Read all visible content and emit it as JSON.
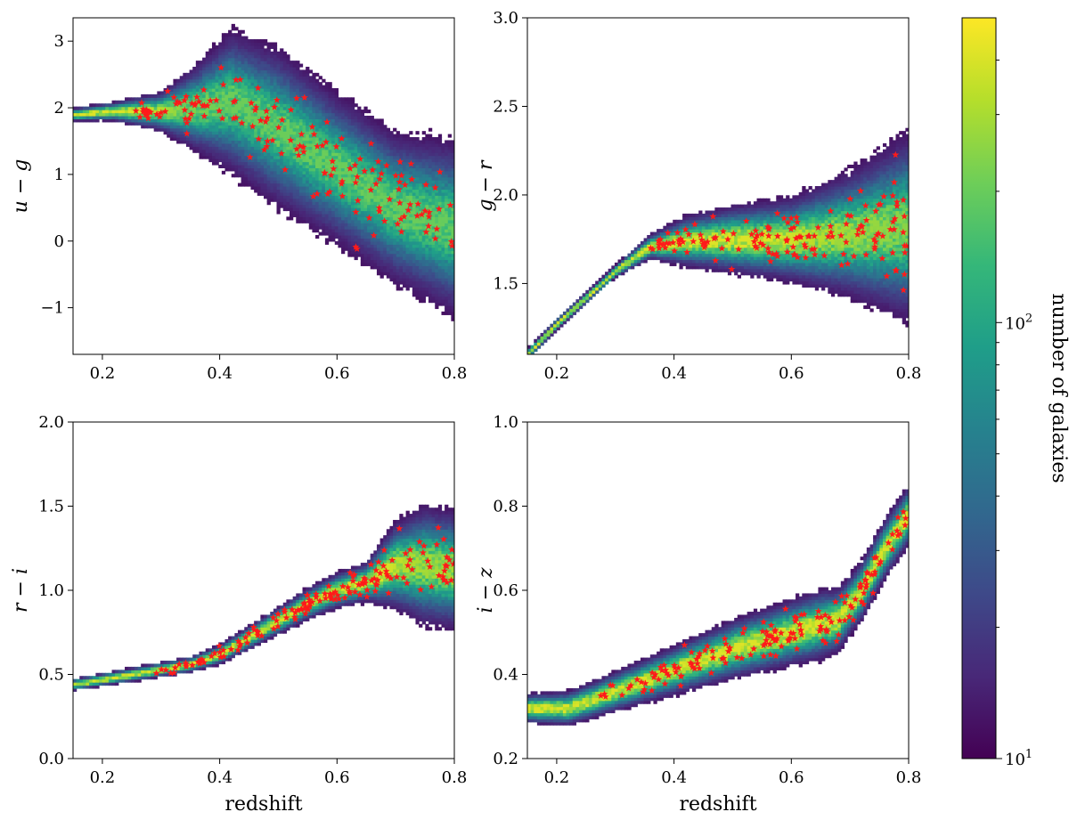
{
  "colors": {
    "viridis": [
      "#440154",
      "#482878",
      "#3e4989",
      "#31688e",
      "#26828e",
      "#1f9e89",
      "#35b779",
      "#6ece58",
      "#b5de2b",
      "#fde725"
    ],
    "star": "#ff1a1a",
    "axis": "#000000"
  },
  "colorbar": {
    "label": "number of galaxies",
    "scale": "log",
    "range": [
      10,
      500
    ],
    "tick_base": "10",
    "ticks": [
      {
        "value": 10,
        "exp": "1"
      },
      {
        "value": 100,
        "exp": "2"
      }
    ]
  },
  "chart_data": [
    {
      "type": "heatmap",
      "overlay": "scatter",
      "xlabel": "redshift",
      "ylabel": "u − g",
      "xlim": [
        0.15,
        0.8
      ],
      "ylim": [
        -1.7,
        3.35
      ],
      "xticks": [
        "0.2",
        "0.4",
        "0.6",
        "0.8"
      ],
      "yticks": [
        "−1",
        "0",
        "1",
        "2",
        "3"
      ],
      "ytick_values": [
        -1,
        0,
        1,
        2,
        3
      ],
      "show_xlabel": false,
      "ridge": {
        "z": [
          0.15,
          0.22,
          0.3,
          0.36,
          0.42,
          0.5,
          0.6,
          0.7,
          0.8
        ],
        "y": [
          1.9,
          1.95,
          1.95,
          2.0,
          2.1,
          1.7,
          1.1,
          0.5,
          0.2
        ]
      },
      "width": {
        "z": [
          0.15,
          0.22,
          0.3,
          0.36,
          0.42,
          0.5,
          0.6,
          0.7,
          0.8
        ],
        "w": [
          0.08,
          0.12,
          0.25,
          0.55,
          0.9,
          1.0,
          0.95,
          0.95,
          1.1
        ]
      },
      "star_z_range": [
        0.25,
        0.8
      ],
      "star_count": 160
    },
    {
      "type": "heatmap",
      "overlay": "scatter",
      "xlabel": "redshift",
      "ylabel": "g − r",
      "xlim": [
        0.15,
        0.8
      ],
      "ylim": [
        1.1,
        3.0
      ],
      "xticks": [
        "0.2",
        "0.4",
        "0.6",
        "0.8"
      ],
      "yticks": [
        "1.5",
        "2.0",
        "2.5",
        "3.0"
      ],
      "ytick_values": [
        1.5,
        2.0,
        2.5,
        3.0
      ],
      "show_xlabel": false,
      "ridge": {
        "z": [
          0.15,
          0.2,
          0.25,
          0.3,
          0.36,
          0.42,
          0.5,
          0.6,
          0.7,
          0.8
        ],
        "y": [
          1.1,
          1.27,
          1.42,
          1.57,
          1.71,
          1.74,
          1.75,
          1.75,
          1.78,
          1.82
        ]
      },
      "width": {
        "z": [
          0.15,
          0.3,
          0.36,
          0.42,
          0.5,
          0.6,
          0.7,
          0.8
        ],
        "w": [
          0.02,
          0.03,
          0.06,
          0.12,
          0.16,
          0.2,
          0.3,
          0.45
        ]
      },
      "star_z_range": [
        0.36,
        0.8
      ],
      "star_count": 150
    },
    {
      "type": "heatmap",
      "overlay": "scatter",
      "xlabel": "redshift",
      "ylabel": "r − i",
      "xlim": [
        0.15,
        0.8
      ],
      "ylim": [
        0.0,
        2.0
      ],
      "xticks": [
        "0.2",
        "0.4",
        "0.6",
        "0.8"
      ],
      "yticks": [
        "0.0",
        "0.5",
        "1.0",
        "1.5",
        "2.0"
      ],
      "ytick_values": [
        0.0,
        0.5,
        1.0,
        1.5,
        2.0
      ],
      "show_xlabel": true,
      "ridge": {
        "z": [
          0.15,
          0.25,
          0.35,
          0.4,
          0.45,
          0.5,
          0.55,
          0.6,
          0.65,
          0.7,
          0.75,
          0.8
        ],
        "y": [
          0.44,
          0.5,
          0.56,
          0.62,
          0.72,
          0.82,
          0.92,
          1.0,
          1.05,
          1.15,
          1.15,
          1.12
        ]
      },
      "width": {
        "z": [
          0.15,
          0.35,
          0.45,
          0.55,
          0.65,
          0.7,
          0.75,
          0.8
        ],
        "w": [
          0.03,
          0.04,
          0.06,
          0.08,
          0.1,
          0.22,
          0.3,
          0.3
        ]
      },
      "star_z_range": [
        0.27,
        0.8
      ],
      "star_count": 150
    },
    {
      "type": "heatmap",
      "overlay": "scatter",
      "xlabel": "redshift",
      "ylabel": "i − z",
      "xlim": [
        0.15,
        0.8
      ],
      "ylim": [
        0.2,
        1.0
      ],
      "xticks": [
        "0.2",
        "0.4",
        "0.6",
        "0.8"
      ],
      "yticks": [
        "0.2",
        "0.4",
        "0.6",
        "0.8",
        "1.0"
      ],
      "ytick_values": [
        0.2,
        0.4,
        0.6,
        0.8,
        1.0
      ],
      "show_xlabel": true,
      "ridge": {
        "z": [
          0.15,
          0.22,
          0.3,
          0.4,
          0.5,
          0.6,
          0.68,
          0.72,
          0.76,
          0.8
        ],
        "y": [
          0.32,
          0.32,
          0.36,
          0.41,
          0.46,
          0.5,
          0.53,
          0.6,
          0.7,
          0.78
        ]
      },
      "width": {
        "z": [
          0.15,
          0.3,
          0.5,
          0.65,
          0.7,
          0.8
        ],
        "w": [
          0.03,
          0.04,
          0.06,
          0.07,
          0.06,
          0.06
        ]
      },
      "star_z_range": [
        0.27,
        0.8
      ],
      "star_count": 160
    }
  ]
}
